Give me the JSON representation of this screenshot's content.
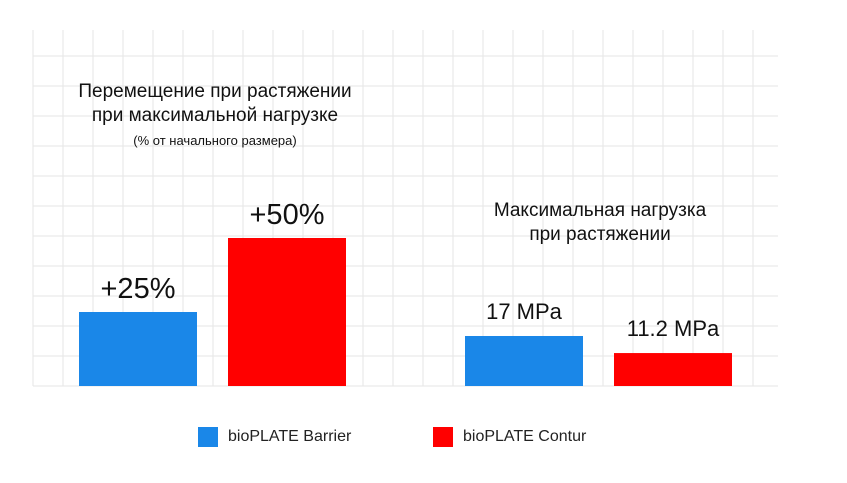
{
  "colors": {
    "barrier": "#1a87e8",
    "contur": "#ff0000",
    "grid": "#e6e6e6"
  },
  "legend": {
    "items": [
      {
        "label": "bioPLATE Barrier",
        "color": "#1a87e8"
      },
      {
        "label": "bioPLATE Contur",
        "color": "#ff0000"
      }
    ]
  },
  "chart_data": [
    {
      "type": "bar",
      "title": "Перемещение при растяжении при максимальной нагрузке",
      "title_lines": [
        "Перемещение при растяжении",
        "при максимальной нагрузке"
      ],
      "subtitle": "(% от начального размера)",
      "categories": [
        "bioPLATE Barrier",
        "bioPLATE Contur"
      ],
      "values": [
        25,
        50
      ],
      "data_labels": [
        "+25%",
        "+50%"
      ],
      "ylim": [
        0,
        50
      ],
      "grid": true,
      "legend": "bottom"
    },
    {
      "type": "bar",
      "title": "Максимальная нагрузка при растяжении",
      "title_lines": [
        "Максимальная нагрузка",
        "при растяжении"
      ],
      "categories": [
        "bioPLATE Barrier",
        "bioPLATE Contur"
      ],
      "values": [
        17,
        11.2
      ],
      "data_labels": [
        "17 MPa",
        "11.2 MPa"
      ],
      "ylim": [
        0,
        17
      ],
      "grid": true,
      "legend": "bottom"
    }
  ]
}
